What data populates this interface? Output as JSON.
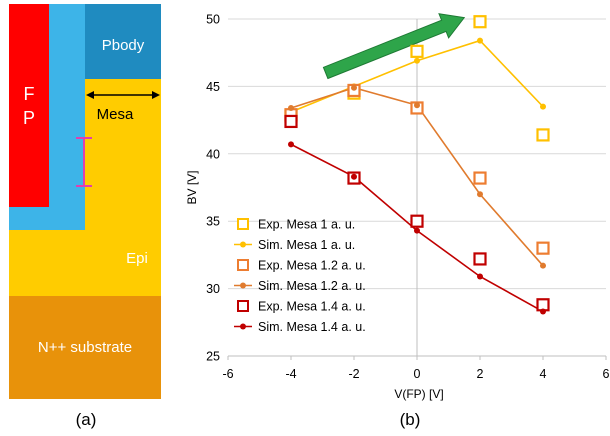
{
  "panel_a": {
    "caption": "(a)",
    "labels": {
      "fp_line1": "F",
      "fp_line2": "P",
      "pbody": "Pbody",
      "mesa": "Mesa",
      "epi": "Epi",
      "substrate": "N++ substrate"
    },
    "colors": {
      "fp": "#FF0000",
      "liner": "#3DB4E8",
      "pbody": "#1F8BC0",
      "epi": "#FFCC00",
      "substrate": "#E8920A",
      "marker": "#E040B0"
    }
  },
  "panel_b": {
    "caption": "(b)"
  },
  "chart_data": {
    "type": "scatter",
    "xlabel": "V(FP) [V]",
    "ylabel": "BV [V]",
    "xlim": [
      -6,
      6
    ],
    "ylim": [
      25,
      50
    ],
    "xticks": [
      "-6",
      "-4",
      "-2",
      "0",
      "2",
      "4",
      "6"
    ],
    "yticks": [
      "25",
      "30",
      "35",
      "40",
      "45",
      "50"
    ],
    "grid": "horizontal",
    "legend_position": "left",
    "series": [
      {
        "name": "Exp. Mesa 1 a. u.",
        "kind": "marker",
        "color": "#FFC000",
        "x": [
          -4,
          -2,
          0,
          2,
          4
        ],
        "y": [
          42.8,
          44.5,
          47.6,
          49.8,
          41.4
        ]
      },
      {
        "name": "Sim. Mesa 1 a. u.",
        "kind": "line",
        "color": "#FFC000",
        "x": [
          -4,
          -2,
          0,
          2,
          4
        ],
        "y": [
          43.1,
          45.0,
          46.9,
          48.4,
          43.5
        ]
      },
      {
        "name": "Exp. Mesa 1.2 a. u.",
        "kind": "marker",
        "color": "#ED7D31",
        "x": [
          -4,
          -2,
          0,
          2,
          4
        ],
        "y": [
          42.9,
          44.7,
          43.4,
          38.2,
          33.0
        ]
      },
      {
        "name": "Sim. Mesa 1.2 a. u.",
        "kind": "line",
        "color": "#E07B2E",
        "x": [
          -4,
          -2,
          0,
          2,
          4
        ],
        "y": [
          43.4,
          44.9,
          43.6,
          37.0,
          31.7
        ]
      },
      {
        "name": "Exp. Mesa 1.4 a. u.",
        "kind": "marker",
        "color": "#C00000",
        "x": [
          -4,
          -2,
          0,
          2,
          4
        ],
        "y": [
          42.4,
          38.2,
          35.0,
          32.2,
          28.8
        ]
      },
      {
        "name": "Sim. Mesa 1.4 a. u.",
        "kind": "line",
        "color": "#C00000",
        "x": [
          -4,
          -2,
          0,
          2,
          4
        ],
        "y": [
          40.7,
          38.3,
          34.3,
          30.9,
          28.3
        ]
      }
    ],
    "annotation": {
      "shape": "arrow",
      "color": "#2EA54A",
      "from": [
        -2.9,
        46.0
      ],
      "to": [
        1.5,
        50.1
      ]
    }
  }
}
